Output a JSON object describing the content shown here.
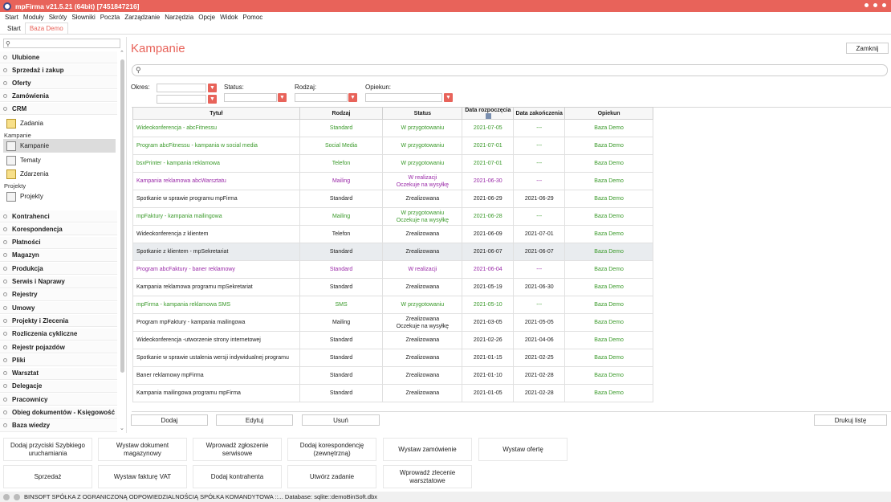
{
  "window": {
    "title": "mpFirma v21.5.21 (64bit) [7451847216]"
  },
  "menu": [
    "Start",
    "Moduły",
    "Skróty",
    "Słowniki",
    "Poczta",
    "Zarządzanie",
    "Narzędzia",
    "Opcje",
    "Widok",
    "Pomoc"
  ],
  "tabs": [
    {
      "label": "Start"
    },
    {
      "label": "Baza Demo"
    }
  ],
  "sidebar": {
    "groups_top": [
      "Ulubione",
      "Sprzedaż i zakup",
      "Oferty",
      "Zamówienia",
      "CRM"
    ],
    "crm_items": [
      {
        "label": "Zadania"
      }
    ],
    "section_kampanie": "Kampanie",
    "kampanie_items": [
      {
        "label": "Kampanie"
      },
      {
        "label": "Tematy"
      },
      {
        "label": "Zdarzenia"
      }
    ],
    "section_projekty": "Projekty",
    "projekty_items": [
      {
        "label": "Projekty"
      }
    ],
    "groups_bottom": [
      "Kontrahenci",
      "Korespondencja",
      "Płatności",
      "Magazyn",
      "Produkcja",
      "Serwis i Naprawy",
      "Rejestry",
      "Umowy",
      "Projekty i Zlecenia",
      "Rozliczenia cykliczne",
      "Rejestr pojazdów",
      "Pliki",
      "Warsztat",
      "Delegacje",
      "Pracownicy",
      "Obieg dokumentów - Księgowość",
      "Baza wiedzy"
    ]
  },
  "main": {
    "title": "Kampanie",
    "close_label": "Zamknij",
    "filters": {
      "okres": "Okres:",
      "status": "Status:",
      "rodzaj": "Rodzaj:",
      "opiekun": "Opiekun:"
    },
    "columns": [
      "Tytuł",
      "Rodzaj",
      "Status",
      "Data rozpoczęcia",
      "Data zakończenia",
      "Opiekun"
    ],
    "rows": [
      {
        "tytul": "Wideokonferencja - abcFitnessu",
        "rodzaj": "Standard",
        "status": "W przygotowaniu",
        "start": "2021-07-05",
        "end": "---",
        "opiekun": "Baza Demo",
        "color": "green"
      },
      {
        "tytul": "Program abcFitnessu - kampania w social media",
        "rodzaj": "Social Media",
        "status": "W przygotowaniu",
        "start": "2021-07-01",
        "end": "---",
        "opiekun": "Baza Demo",
        "color": "green"
      },
      {
        "tytul": "bsxPrinter - kampania reklamowa",
        "rodzaj": "Telefon",
        "status": "W przygotowaniu",
        "start": "2021-07-01",
        "end": "---",
        "opiekun": "Baza Demo",
        "color": "green"
      },
      {
        "tytul": "Kampania reklamowa abcWarsztatu",
        "rodzaj": "Mailing",
        "status": "W realizacji\nOczekuje na wysyłkę",
        "start": "2021-06-30",
        "end": "---",
        "opiekun": "Baza Demo",
        "color": "purple"
      },
      {
        "tytul": "Spotkanie w sprawie programu mpFirma",
        "rodzaj": "Standard",
        "status": "Zrealizowana",
        "start": "2021-06-29",
        "end": "2021-06-29",
        "opiekun": "Baza Demo",
        "color": "black"
      },
      {
        "tytul": "mpFaktury - kampania mailingowa",
        "rodzaj": "Mailing",
        "status": "W przygotowaniu\nOczekuje na wysyłkę",
        "start": "2021-06-28",
        "end": "---",
        "opiekun": "Baza Demo",
        "color": "green"
      },
      {
        "tytul": "Wideokonferencja z klientem",
        "rodzaj": "Telefon",
        "status": "Zrealizowana",
        "start": "2021-06-09",
        "end": "2021-07-01",
        "opiekun": "Baza Demo",
        "color": "black"
      },
      {
        "tytul": "Spotkanie z klientem - mpSekretariat",
        "rodzaj": "Standard",
        "status": "Zrealizowana",
        "start": "2021-06-07",
        "end": "2021-06-07",
        "opiekun": "Baza Demo",
        "color": "black",
        "highlight": true
      },
      {
        "tytul": "Program abcFaktury - baner reklamowy",
        "rodzaj": "Standard",
        "status": "W realizacji",
        "start": "2021-06-04",
        "end": "---",
        "opiekun": "Baza Demo",
        "color": "purple"
      },
      {
        "tytul": "Kampania reklamowa programu mpSekretariat",
        "rodzaj": "Standard",
        "status": "Zrealizowana",
        "start": "2021-05-19",
        "end": "2021-06-30",
        "opiekun": "Baza Demo",
        "color": "black"
      },
      {
        "tytul": "mpFirma - kampania reklamowa SMS",
        "rodzaj": "SMS",
        "status": "W przygotowaniu",
        "start": "2021-05-10",
        "end": "---",
        "opiekun": "Baza Demo",
        "color": "green"
      },
      {
        "tytul": "Program mpFaktury - kampania mailingowa",
        "rodzaj": "Mailing",
        "status": "Zrealizowana\nOczekuje na wysyłkę",
        "start": "2021-03-05",
        "end": "2021-05-05",
        "opiekun": "Baza Demo",
        "color": "black"
      },
      {
        "tytul": "Wideokonferencja -utworzenie strony internetowej",
        "rodzaj": "Standard",
        "status": "Zrealizowana",
        "start": "2021-02-26",
        "end": "2021-04-06",
        "opiekun": "Baza Demo",
        "color": "black"
      },
      {
        "tytul": "Spotkanie w sprawie ustalenia wersji indywidualnej programu",
        "rodzaj": "Standard",
        "status": "Zrealizowana",
        "start": "2021-01-15",
        "end": "2021-02-25",
        "opiekun": "Baza Demo",
        "color": "black"
      },
      {
        "tytul": "Baner reklamowy mpFirma",
        "rodzaj": "Standard",
        "status": "Zrealizowana",
        "start": "2021-01-10",
        "end": "2021-02-28",
        "opiekun": "Baza Demo",
        "color": "black"
      },
      {
        "tytul": "Kampania mailingowa programu mpFirma",
        "rodzaj": "Standard",
        "status": "Zrealizowana",
        "start": "2021-01-05",
        "end": "2021-02-28",
        "opiekun": "Baza Demo",
        "color": "black"
      }
    ],
    "buttons": {
      "dodaj": "Dodaj",
      "edytuj": "Edytuj",
      "usun": "Usuń",
      "drukuj": "Drukuj listę"
    }
  },
  "shortcuts": [
    "Dodaj przyciski Szybkiego uruchamiania",
    "Wystaw dokument magazynowy",
    "Wprowadź zgłoszenie serwisowe",
    "Dodaj korespondencję (zewnętrzną)",
    "Wystaw zamówienie",
    "Wystaw ofertę",
    "Sprzedaż",
    "Wystaw fakturę VAT",
    "Dodaj kontrahenta",
    "Utwórz zadanie",
    "Wprowadź zlecenie warsztatowe"
  ],
  "statusbar": {
    "text": "BINSOFT SPÓŁKA Z OGRANICZONĄ ODPOWIEDZIALNOŚCIĄ SPÓŁKA KOMANDYTOWA ::... Database: sqlite::demoBinSoft.dbx"
  },
  "colors": {
    "accent": "#e8635a",
    "green": "#3a9a2a",
    "purple": "#9a2aa8"
  }
}
